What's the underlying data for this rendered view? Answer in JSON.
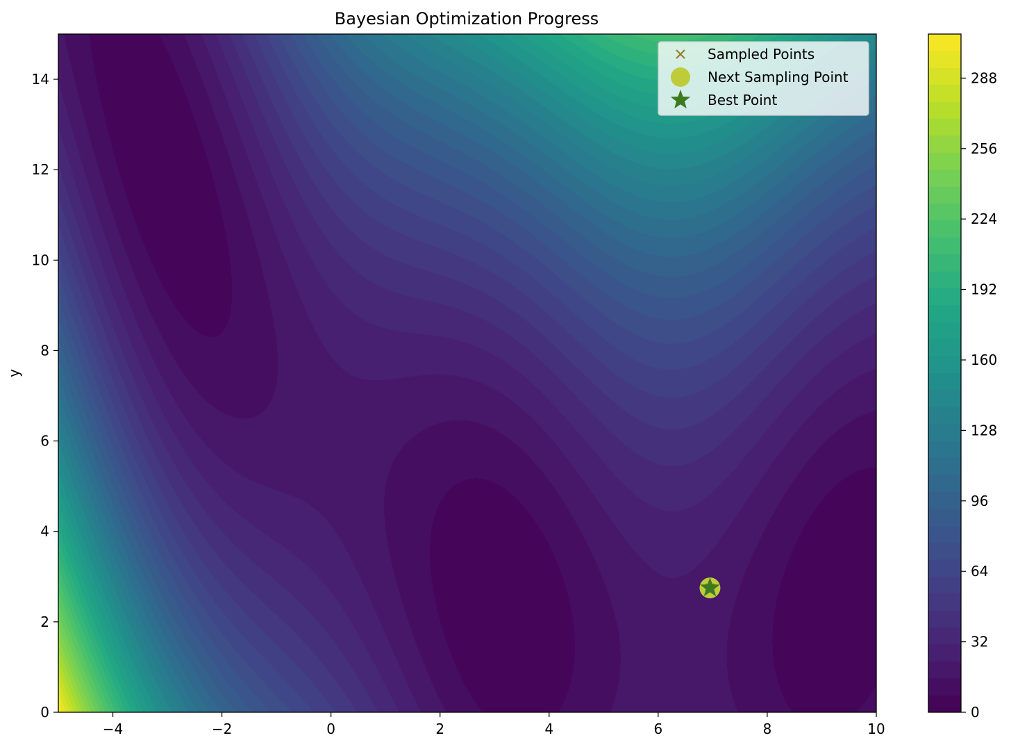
{
  "chart_data": {
    "type": "contour",
    "title": "Bayesian Optimization Progress",
    "xlabel": "",
    "ylabel": "y",
    "xlim": [
      -5,
      10
    ],
    "ylim": [
      0,
      15
    ],
    "x_ticks": [
      -4,
      -2,
      0,
      2,
      4,
      6,
      8,
      10
    ],
    "y_ticks": [
      0,
      2,
      4,
      6,
      8,
      10,
      12,
      14
    ],
    "x_tick_labels": [
      "−4",
      "−2",
      "0",
      "2",
      "4",
      "6",
      "8",
      "10"
    ],
    "y_tick_labels": [
      "0",
      "2",
      "4",
      "6",
      "8",
      "10",
      "12",
      "14"
    ],
    "surface": "branin",
    "colormap": "viridis",
    "colorbar": {
      "range": [
        0,
        308
      ],
      "ticks": [
        0,
        32,
        64,
        96,
        128,
        160,
        192,
        224,
        256,
        288
      ]
    },
    "legend": {
      "placement": "upper-right",
      "entries": [
        {
          "label": "Sampled Points",
          "marker": "x",
          "color": "#9a7d2e"
        },
        {
          "label": "Next Sampling Point",
          "marker": "circle",
          "color": "#bfcc3a"
        },
        {
          "label": "Best Point",
          "marker": "star",
          "color": "#3d7a1f"
        }
      ]
    },
    "points": {
      "sampled": [
        {
          "x": 6.95,
          "y": 2.75
        }
      ],
      "next_sampling": {
        "x": 6.95,
        "y": 2.75
      },
      "best": {
        "x": 6.95,
        "y": 2.75
      }
    }
  }
}
